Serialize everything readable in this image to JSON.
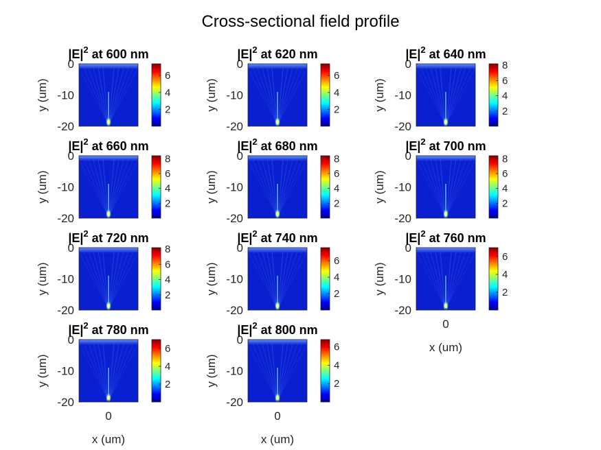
{
  "figure": {
    "title": "Cross-sectional field profile"
  },
  "chart_data": {
    "type": "heatmap",
    "title": "Cross-sectional field profile",
    "xlabel": "x (um)",
    "ylabel": "y (um)",
    "ylim": [
      -20,
      0
    ],
    "yticks": [
      0,
      -10,
      -20
    ],
    "xticks": [
      0
    ],
    "colormap": "jet",
    "colors": {
      "background": "#0a1fd0",
      "jet": [
        "#00008f",
        "#0000ff",
        "#00ffff",
        "#ffff00",
        "#ff0000",
        "#800000"
      ]
    },
    "panels": [
      {
        "title_prefix": "|E|",
        "title_sup": "2",
        "title_rest": " at 600 nm",
        "wavelength_nm": 600,
        "clim": [
          0,
          7.4
        ],
        "cbar_ticks": [
          2,
          4,
          6
        ],
        "show_ylabel": true,
        "show_xlabel": false,
        "show_xtick": false
      },
      {
        "title_prefix": "|E|",
        "title_sup": "2",
        "title_rest": " at 620 nm",
        "wavelength_nm": 620,
        "clim": [
          0,
          7.4
        ],
        "cbar_ticks": [
          2,
          4,
          6
        ],
        "show_ylabel": true,
        "show_xlabel": false,
        "show_xtick": false
      },
      {
        "title_prefix": "|E|",
        "title_sup": "2",
        "title_rest": " at 640 nm",
        "wavelength_nm": 640,
        "clim": [
          0,
          8.2
        ],
        "cbar_ticks": [
          2,
          4,
          6,
          8
        ],
        "show_ylabel": true,
        "show_xlabel": false,
        "show_xtick": false
      },
      {
        "title_prefix": "|E|",
        "title_sup": "2",
        "title_rest": " at 660 nm",
        "wavelength_nm": 660,
        "clim": [
          0,
          8.4
        ],
        "cbar_ticks": [
          2,
          4,
          6,
          8
        ],
        "show_ylabel": true,
        "show_xlabel": false,
        "show_xtick": false
      },
      {
        "title_prefix": "|E|",
        "title_sup": "2",
        "title_rest": " at 680 nm",
        "wavelength_nm": 680,
        "clim": [
          0,
          8.4
        ],
        "cbar_ticks": [
          2,
          4,
          6,
          8
        ],
        "show_ylabel": true,
        "show_xlabel": false,
        "show_xtick": false
      },
      {
        "title_prefix": "|E|",
        "title_sup": "2",
        "title_rest": " at 700 nm",
        "wavelength_nm": 700,
        "clim": [
          0,
          8.4
        ],
        "cbar_ticks": [
          2,
          4,
          6,
          8
        ],
        "show_ylabel": true,
        "show_xlabel": false,
        "show_xtick": false
      },
      {
        "title_prefix": "|E|",
        "title_sup": "2",
        "title_rest": " at 720 nm",
        "wavelength_nm": 720,
        "clim": [
          0,
          8.2
        ],
        "cbar_ticks": [
          2,
          4,
          6,
          8
        ],
        "show_ylabel": true,
        "show_xlabel": false,
        "show_xtick": false
      },
      {
        "title_prefix": "|E|",
        "title_sup": "2",
        "title_rest": " at 740 nm",
        "wavelength_nm": 740,
        "clim": [
          0,
          7.6
        ],
        "cbar_ticks": [
          2,
          4,
          6
        ],
        "show_ylabel": true,
        "show_xlabel": false,
        "show_xtick": false
      },
      {
        "title_prefix": "|E|",
        "title_sup": "2",
        "title_rest": " at 760 nm",
        "wavelength_nm": 760,
        "clim": [
          0,
          7.0
        ],
        "cbar_ticks": [
          2,
          4,
          6
        ],
        "show_ylabel": true,
        "show_xlabel": true,
        "show_xtick": true
      },
      {
        "title_prefix": "|E|",
        "title_sup": "2",
        "title_rest": " at 780 nm",
        "wavelength_nm": 780,
        "clim": [
          0,
          7.0
        ],
        "cbar_ticks": [
          2,
          4,
          6
        ],
        "show_ylabel": true,
        "show_xlabel": true,
        "show_xtick": true
      },
      {
        "title_prefix": "|E|",
        "title_sup": "2",
        "title_rest": " at 800 nm",
        "wavelength_nm": 800,
        "clim": [
          0,
          6.8
        ],
        "cbar_ticks": [
          2,
          4,
          6
        ],
        "show_ylabel": true,
        "show_xlabel": true,
        "show_xtick": true
      }
    ]
  }
}
